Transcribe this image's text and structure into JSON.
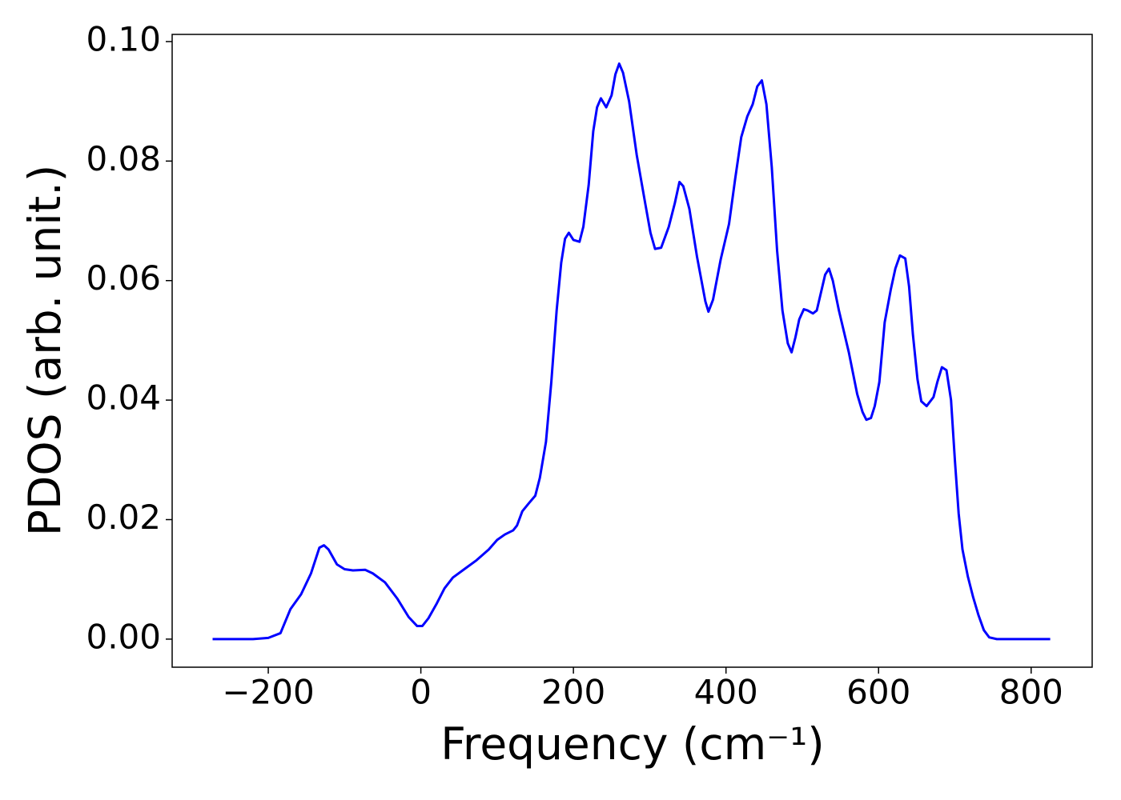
{
  "chart_data": {
    "type": "line",
    "xlabel": "Frequency (cm⁻¹)",
    "ylabel": "PDOS (arb. unit.)",
    "xlim": [
      -326,
      880
    ],
    "ylim": [
      -0.0047,
      0.1012
    ],
    "xticks": [
      {
        "value": -200,
        "label": "−200"
      },
      0,
      200,
      400,
      600,
      800
    ],
    "yticks": [
      {
        "value": 0,
        "label": "0.00"
      },
      {
        "value": 0.02,
        "label": "0.02"
      },
      {
        "value": 0.04,
        "label": "0.04"
      },
      {
        "value": 0.06,
        "label": "0.06"
      },
      {
        "value": 0.08,
        "label": "0.08"
      },
      {
        "value": 0.1,
        "label": "0.10"
      }
    ],
    "grid": false,
    "series": [
      {
        "color": "#0000ff",
        "x": [
          -273,
          -220,
          -200,
          -184,
          -171,
          -157,
          -144,
          -133,
          -127,
          -121,
          -110,
          -100,
          -89,
          -73,
          -63,
          -47,
          -31,
          -16,
          -5,
          2,
          10,
          21,
          31,
          42,
          58,
          73,
          89,
          100,
          110,
          121,
          126,
          133,
          142,
          150,
          156,
          164,
          171,
          178,
          184,
          189,
          194,
          200,
          208,
          213,
          220,
          226,
          231,
          236,
          243,
          250,
          255,
          260,
          265,
          273,
          283,
          294,
          301,
          307,
          315,
          325,
          333,
          339,
          344,
          352,
          362,
          373,
          377,
          383,
          393,
          404,
          412,
          420,
          428,
          435,
          441,
          447,
          453,
          460,
          467,
          474,
          481,
          486,
          491,
          496,
          502,
          507,
          514,
          519,
          530,
          535,
          540,
          548,
          561,
          572,
          579,
          584,
          590,
          595,
          601,
          608,
          616,
          622,
          628,
          635,
          640,
          645,
          651,
          656,
          663,
          672,
          677,
          683,
          689,
          695,
          700,
          705,
          710,
          717,
          724,
          731,
          738,
          745,
          755,
          825
        ],
        "values": [
          0,
          0,
          0.0002,
          0.001,
          0.005,
          0.0075,
          0.011,
          0.0153,
          0.0157,
          0.015,
          0.0125,
          0.0117,
          0.0115,
          0.0116,
          0.011,
          0.0095,
          0.0068,
          0.0037,
          0.0022,
          0.0022,
          0.0035,
          0.006,
          0.0085,
          0.0103,
          0.0118,
          0.0132,
          0.015,
          0.0166,
          0.0175,
          0.0182,
          0.019,
          0.0214,
          0.0228,
          0.024,
          0.027,
          0.033,
          0.043,
          0.055,
          0.063,
          0.067,
          0.068,
          0.0668,
          0.0665,
          0.069,
          0.076,
          0.085,
          0.089,
          0.0905,
          0.089,
          0.091,
          0.0945,
          0.0963,
          0.0948,
          0.09,
          0.081,
          0.073,
          0.068,
          0.0653,
          0.0655,
          0.069,
          0.073,
          0.0765,
          0.0758,
          0.072,
          0.064,
          0.0565,
          0.0548,
          0.0568,
          0.0635,
          0.0695,
          0.077,
          0.084,
          0.0875,
          0.0895,
          0.0925,
          0.0935,
          0.0895,
          0.079,
          0.065,
          0.055,
          0.0495,
          0.048,
          0.0505,
          0.0535,
          0.0552,
          0.055,
          0.0545,
          0.055,
          0.061,
          0.062,
          0.06,
          0.055,
          0.048,
          0.041,
          0.038,
          0.0367,
          0.037,
          0.039,
          0.043,
          0.053,
          0.0585,
          0.062,
          0.0642,
          0.0637,
          0.059,
          0.051,
          0.0435,
          0.0398,
          0.039,
          0.0405,
          0.043,
          0.0455,
          0.045,
          0.04,
          0.03,
          0.021,
          0.015,
          0.0105,
          0.007,
          0.004,
          0.0015,
          0.0003,
          0,
          0
        ]
      }
    ]
  }
}
